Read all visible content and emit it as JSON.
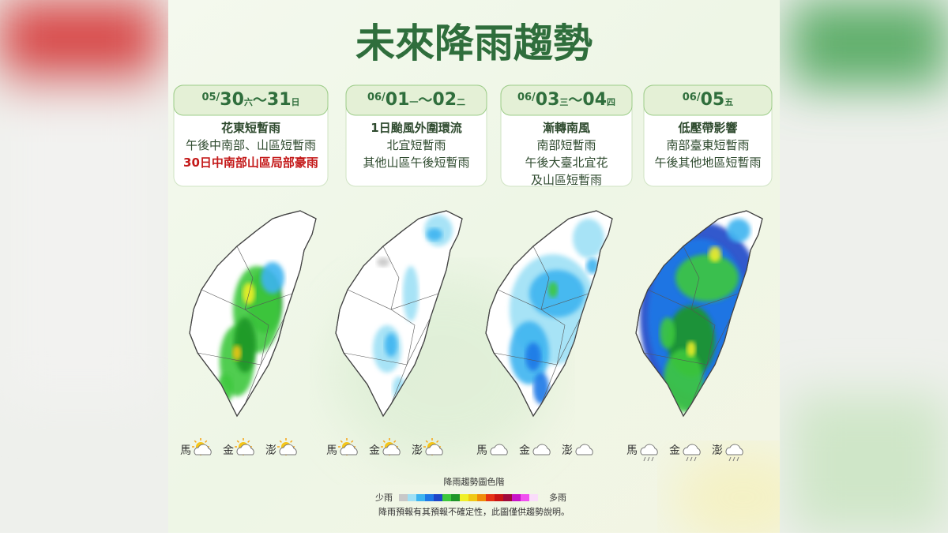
{
  "header": {
    "title": "未來降雨趨勢"
  },
  "panels": [
    {
      "date": {
        "month": "05/",
        "day": "30",
        "weekday": "六",
        "sep": "～",
        "day2": "31",
        "weekday2": "日"
      },
      "lines": [
        "花東短暫雨",
        "午後中南部、山區短暫雨",
        "30日中南部山區局部豪雨"
      ],
      "highlight_line": 2,
      "islands": [
        "馬",
        "金",
        "澎"
      ],
      "icon": "sun-cloud",
      "rain": "south-central"
    },
    {
      "date": {
        "month": "06/",
        "day": "01",
        "weekday": "一",
        "sep": "～",
        "day2": "02",
        "weekday2": "二"
      },
      "lines": [
        "1日颱風外圍環流",
        "北宜短暫雨",
        "其他山區午後短暫雨"
      ],
      "islands": [
        "馬",
        "金",
        "澎"
      ],
      "icon": "sun-cloud",
      "rain": "light"
    },
    {
      "date": {
        "month": "06/",
        "day": "03",
        "weekday": "三",
        "sep": "～",
        "day2": "04",
        "weekday2": "四"
      },
      "lines": [
        "漸轉南風",
        "南部短暫雨",
        "午後大臺北宜花",
        "及山區短暫雨"
      ],
      "islands": [
        "馬",
        "金",
        "澎"
      ],
      "icon": "cloud",
      "rain": "moderate"
    },
    {
      "date": {
        "month": "06/",
        "day": "05",
        "weekday": "五"
      },
      "lines": [
        "低壓帶影響",
        "南部臺東短暫雨",
        "午後其他地區短暫雨"
      ],
      "islands": [
        "馬",
        "金",
        "澎"
      ],
      "icon": "rain",
      "rain": "widespread"
    }
  ],
  "legend": {
    "title": "降雨趨勢圖色階",
    "low": "少雨",
    "high": "多雨",
    "colors": [
      "#c8c8c8",
      "#9ee0f5",
      "#3cb4f0",
      "#1e78e6",
      "#1e46c8",
      "#3cc83c",
      "#1e9628",
      "#f0f028",
      "#f0c814",
      "#f08c0a",
      "#e63214",
      "#c81414",
      "#a00a3c",
      "#c814c8",
      "#f050f0",
      "#fadcfa"
    ]
  },
  "footer": {
    "note": "降雨預報有其預報不確定性，此圖僅供趨勢說明。"
  }
}
